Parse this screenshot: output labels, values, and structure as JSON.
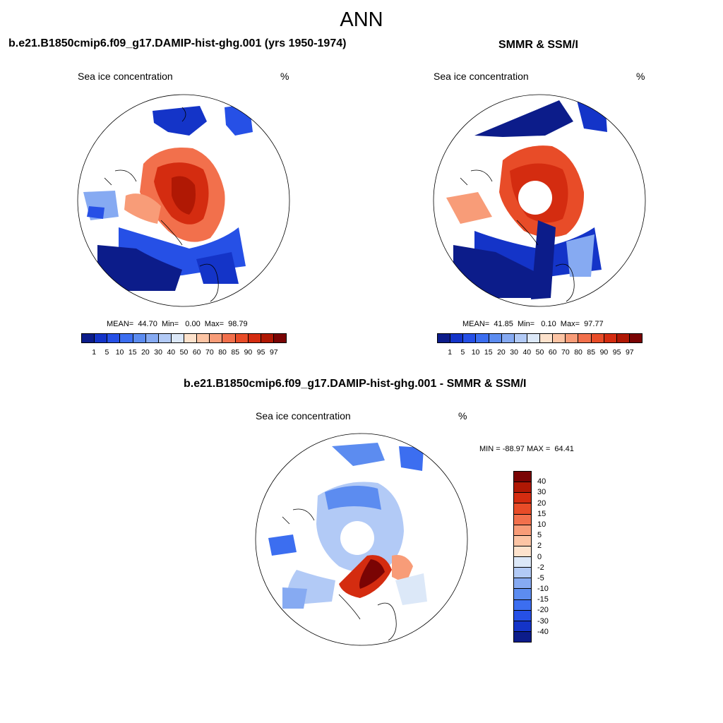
{
  "title": "ANN",
  "panels": [
    {
      "title": "b.e21.B1850cmip6.f09_g17.DAMIP-hist-ghg.001 (yrs 1950-1974)",
      "subtitle_left": "Sea ice concentration",
      "subtitle_right": "%",
      "stats": "MEAN=  44.70  Min=   0.00  Max=  98.79",
      "pole_hole": false
    },
    {
      "title": "SMMR & SSM/I",
      "subtitle_left": "Sea ice concentration",
      "subtitle_right": "%",
      "stats": "MEAN=  41.85  Min=   0.10  Max=  97.77",
      "pole_hole": true
    }
  ],
  "diff_panel": {
    "title": "b.e21.B1850cmip6.f09_g17.DAMIP-hist-ghg.001 - SMMR & SSM/I",
    "subtitle_left": "Sea ice concentration",
    "subtitle_right": "%",
    "minmax": "MIN = -88.97 MAX =  64.41"
  },
  "colorbar_conc": {
    "labels": [
      "1",
      "5",
      "10",
      "15",
      "20",
      "30",
      "40",
      "50",
      "60",
      "70",
      "80",
      "85",
      "90",
      "95",
      "97"
    ],
    "colors": [
      "#0c1c8a",
      "#1434c8",
      "#2650e6",
      "#3c6ef0",
      "#5c8cf0",
      "#86aaf2",
      "#b2caf6",
      "#dce8f8",
      "#fde2cc",
      "#fcc4a4",
      "#f89c78",
      "#f2704c",
      "#e84c28",
      "#d42c10",
      "#b01804",
      "#7a0404"
    ]
  },
  "colorbar_diff": {
    "labels": [
      "40",
      "30",
      "20",
      "15",
      "10",
      "5",
      "2",
      "0",
      "-2",
      "-5",
      "-10",
      "-15",
      "-20",
      "-30",
      "-40"
    ],
    "colors": [
      "#7a0404",
      "#b01804",
      "#d42c10",
      "#e84c28",
      "#f2704c",
      "#f89c78",
      "#fcc4a4",
      "#fde2cc",
      "#dce8f8",
      "#b2caf6",
      "#86aaf2",
      "#5c8cf0",
      "#3c6ef0",
      "#2650e6",
      "#1434c8",
      "#0c1c8a"
    ]
  }
}
